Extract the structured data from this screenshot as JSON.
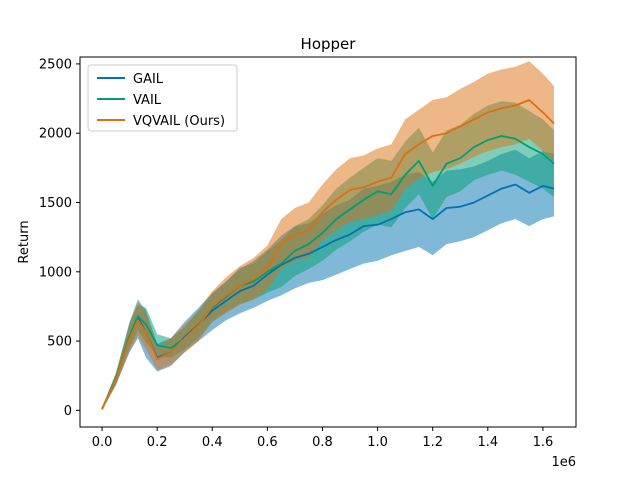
{
  "chart_data": {
    "type": "line",
    "title": "Hopper",
    "xlabel": "",
    "ylabel": "Return",
    "x_offset_label": "1e6",
    "xlim": [
      -0.08,
      1.72
    ],
    "ylim": [
      -120,
      2550
    ],
    "xticks": [
      0.0,
      0.2,
      0.4,
      0.6,
      0.8,
      1.0,
      1.2,
      1.4,
      1.6
    ],
    "xtick_labels": [
      "0.0",
      "0.2",
      "0.4",
      "0.6",
      "0.8",
      "1.0",
      "1.2",
      "1.4",
      "1.6"
    ],
    "yticks": [
      0,
      500,
      1000,
      1500,
      2000,
      2500
    ],
    "ytick_labels": [
      "0",
      "500",
      "1000",
      "1500",
      "2000",
      "2500"
    ],
    "grid": false,
    "legend_position": "top-left",
    "x": [
      0.0,
      0.05,
      0.1,
      0.13,
      0.16,
      0.2,
      0.25,
      0.3,
      0.35,
      0.4,
      0.45,
      0.5,
      0.55,
      0.6,
      0.65,
      0.7,
      0.75,
      0.8,
      0.85,
      0.9,
      0.95,
      1.0,
      1.05,
      1.1,
      1.15,
      1.2,
      1.25,
      1.3,
      1.35,
      1.4,
      1.45,
      1.5,
      1.55,
      1.6,
      1.64
    ],
    "series": [
      {
        "name": "GAIL",
        "color": "#0173b2",
        "values": [
          10,
          220,
          530,
          670,
          560,
          380,
          420,
          530,
          620,
          720,
          790,
          860,
          900,
          980,
          1050,
          1100,
          1130,
          1180,
          1230,
          1270,
          1330,
          1340,
          1380,
          1430,
          1450,
          1380,
          1460,
          1470,
          1500,
          1550,
          1600,
          1630,
          1570,
          1620,
          1600
        ],
        "lower": [
          0,
          180,
          420,
          520,
          380,
          280,
          320,
          420,
          500,
          580,
          650,
          700,
          740,
          790,
          830,
          880,
          920,
          940,
          980,
          1020,
          1060,
          1080,
          1120,
          1150,
          1180,
          1120,
          1200,
          1220,
          1250,
          1300,
          1350,
          1380,
          1330,
          1380,
          1400
        ],
        "upper": [
          20,
          260,
          640,
          800,
          720,
          480,
          520,
          640,
          740,
          850,
          930,
          1020,
          1080,
          1160,
          1260,
          1330,
          1350,
          1420,
          1480,
          1520,
          1600,
          1620,
          1650,
          1700,
          1720,
          1650,
          1730,
          1740,
          1760,
          1800,
          1850,
          1880,
          1820,
          1870,
          1850
        ]
      },
      {
        "name": "VAIL",
        "color": "#029e73",
        "values": [
          10,
          230,
          540,
          680,
          620,
          470,
          450,
          520,
          620,
          740,
          820,
          900,
          930,
          1000,
          1060,
          1150,
          1200,
          1280,
          1380,
          1450,
          1520,
          1580,
          1560,
          1700,
          1800,
          1620,
          1780,
          1820,
          1900,
          1950,
          1980,
          1960,
          1900,
          1850,
          1780
        ],
        "lower": [
          0,
          190,
          450,
          580,
          490,
          390,
          380,
          440,
          520,
          640,
          710,
          770,
          800,
          850,
          890,
          970,
          1020,
          1080,
          1160,
          1220,
          1290,
          1340,
          1320,
          1460,
          1560,
          1380,
          1540,
          1580,
          1660,
          1700,
          1730,
          1700,
          1650,
          1600,
          1540
        ],
        "upper": [
          20,
          270,
          630,
          760,
          740,
          550,
          520,
          600,
          720,
          840,
          930,
          1030,
          1060,
          1150,
          1230,
          1330,
          1380,
          1480,
          1600,
          1680,
          1750,
          1820,
          1800,
          1940,
          2040,
          1860,
          2020,
          2060,
          2140,
          2200,
          2230,
          2220,
          2160,
          2100,
          2020
        ]
      },
      {
        "name": "VQVAIL (Ours)",
        "color": "#de6f10",
        "values": [
          10,
          220,
          520,
          650,
          560,
          370,
          420,
          520,
          610,
          750,
          830,
          900,
          950,
          1030,
          1200,
          1270,
          1300,
          1430,
          1520,
          1590,
          1610,
          1650,
          1680,
          1850,
          1920,
          1980,
          2000,
          2050,
          2100,
          2150,
          2180,
          2200,
          2240,
          2150,
          2070
        ],
        "lower": [
          0,
          180,
          430,
          540,
          440,
          290,
          330,
          420,
          500,
          640,
          700,
          760,
          800,
          870,
          1020,
          1080,
          1100,
          1230,
          1300,
          1360,
          1380,
          1410,
          1440,
          1600,
          1670,
          1720,
          1740,
          1780,
          1830,
          1870,
          1900,
          1920,
          1960,
          1870,
          1800
        ],
        "upper": [
          20,
          260,
          620,
          780,
          700,
          450,
          520,
          620,
          720,
          860,
          960,
          1040,
          1100,
          1190,
          1380,
          1460,
          1500,
          1630,
          1740,
          1820,
          1840,
          1890,
          1920,
          2100,
          2170,
          2240,
          2260,
          2320,
          2370,
          2430,
          2460,
          2480,
          2520,
          2430,
          2340
        ]
      }
    ]
  }
}
